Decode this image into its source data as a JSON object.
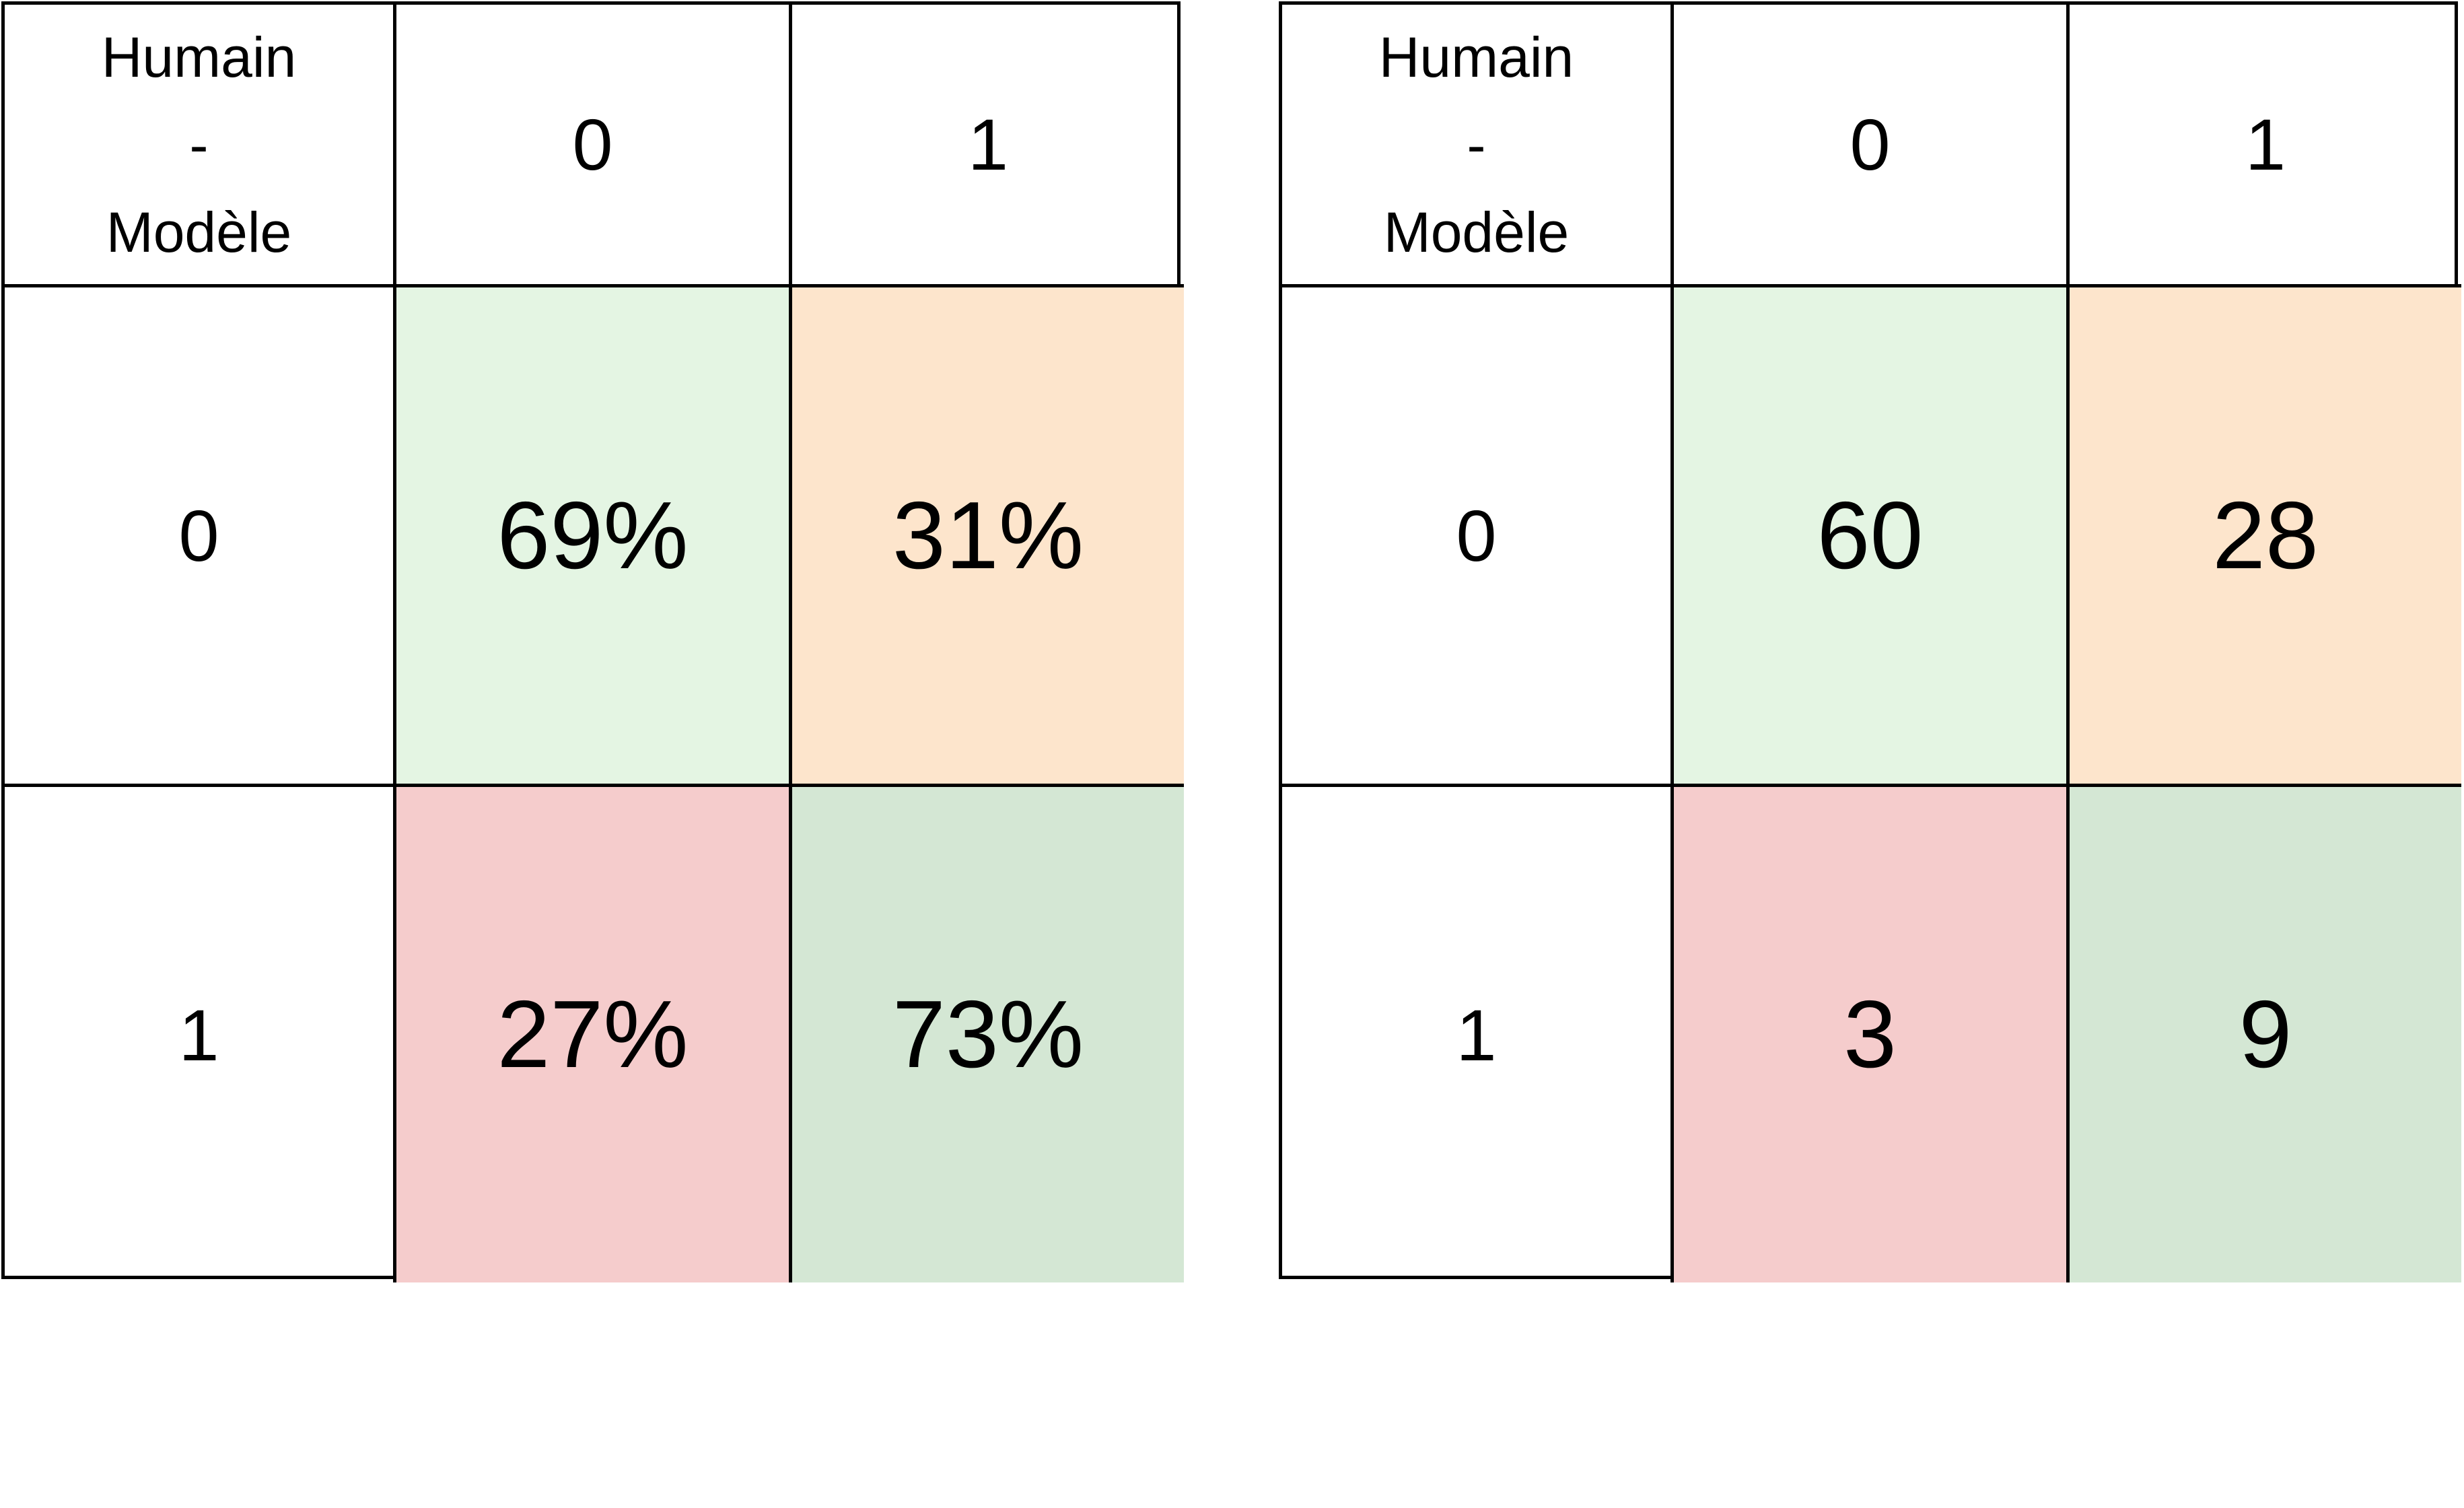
{
  "colors": {
    "true_negative": "#e4f5e3",
    "false_positive": "#fde5cc",
    "false_negative": "#f5cccc",
    "true_positive": "#d4e7d4",
    "border": "#000000"
  },
  "matrices": [
    {
      "corner": {
        "line1": "Humain",
        "line2": "-",
        "line3": "Modèle"
      },
      "columns": [
        "0",
        "1"
      ],
      "rows": [
        {
          "label": "0",
          "values": [
            "69%",
            "31%"
          ]
        },
        {
          "label": "1",
          "values": [
            "27%",
            "73%"
          ]
        }
      ]
    },
    {
      "corner": {
        "line1": "Humain",
        "line2": "-",
        "line3": "Modèle"
      },
      "columns": [
        "0",
        "1"
      ],
      "rows": [
        {
          "label": "0",
          "values": [
            "60",
            "28"
          ]
        },
        {
          "label": "1",
          "values": [
            "3",
            "9"
          ]
        }
      ]
    }
  ]
}
